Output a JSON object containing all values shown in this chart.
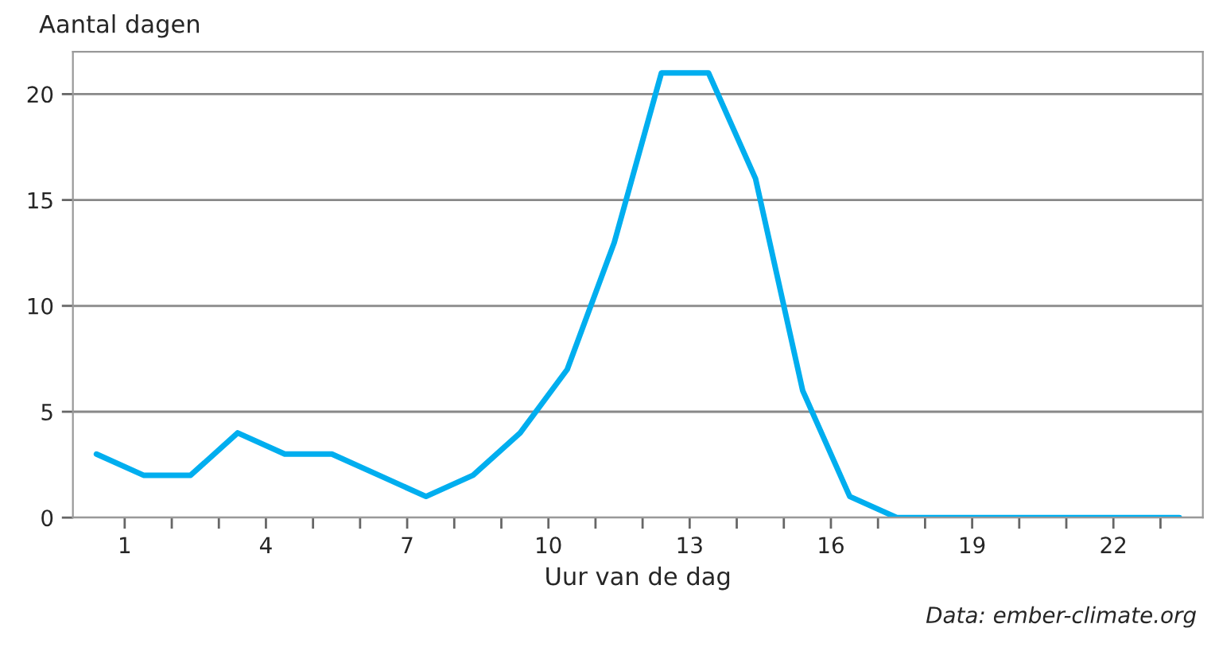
{
  "chart_data": {
    "type": "line",
    "ylabel": "Aantal dagen",
    "xlabel": "Uur van de dag",
    "annotations": [
      "Data: ember-climate.org"
    ],
    "x": [
      0.4,
      1.4,
      2.4,
      3.4,
      4.4,
      5.4,
      6.4,
      7.4,
      8.4,
      9.4,
      10.4,
      11.4,
      12.4,
      13.4,
      14.4,
      15.4,
      16.4,
      17.4,
      18.4,
      19.4,
      20.4,
      21.4,
      22.4,
      23.4
    ],
    "series": [
      {
        "color": "#00aeef",
        "values": [
          3,
          2,
          2,
          4,
          3,
          3,
          2,
          1,
          2,
          4,
          7,
          13,
          21,
          21,
          16,
          6,
          1,
          0,
          0,
          0,
          0,
          0,
          0,
          0
        ]
      }
    ],
    "xlim": [
      -0.1,
      23.9
    ],
    "ylim": [
      0,
      22
    ],
    "xticks": [
      1,
      {
        "value": 2,
        "label": null
      },
      {
        "value": 3,
        "label": null
      },
      4,
      {
        "value": 5,
        "label": null
      },
      {
        "value": 6,
        "label": null
      },
      7,
      {
        "value": 8,
        "label": null
      },
      {
        "value": 9,
        "label": null
      },
      10,
      {
        "value": 11,
        "label": null
      },
      {
        "value": 12,
        "label": null
      },
      13,
      {
        "value": 14,
        "label": null
      },
      {
        "value": 15,
        "label": null
      },
      16,
      {
        "value": 17,
        "label": null
      },
      {
        "value": 18,
        "label": null
      },
      19,
      {
        "value": 20,
        "label": null
      },
      {
        "value": 21,
        "label": null
      },
      22,
      {
        "value": 23,
        "label": null
      }
    ],
    "yticks": [
      0,
      5,
      10,
      15,
      20
    ],
    "grid": "y",
    "legend": false,
    "marker": "none",
    "line_style": "solid"
  }
}
